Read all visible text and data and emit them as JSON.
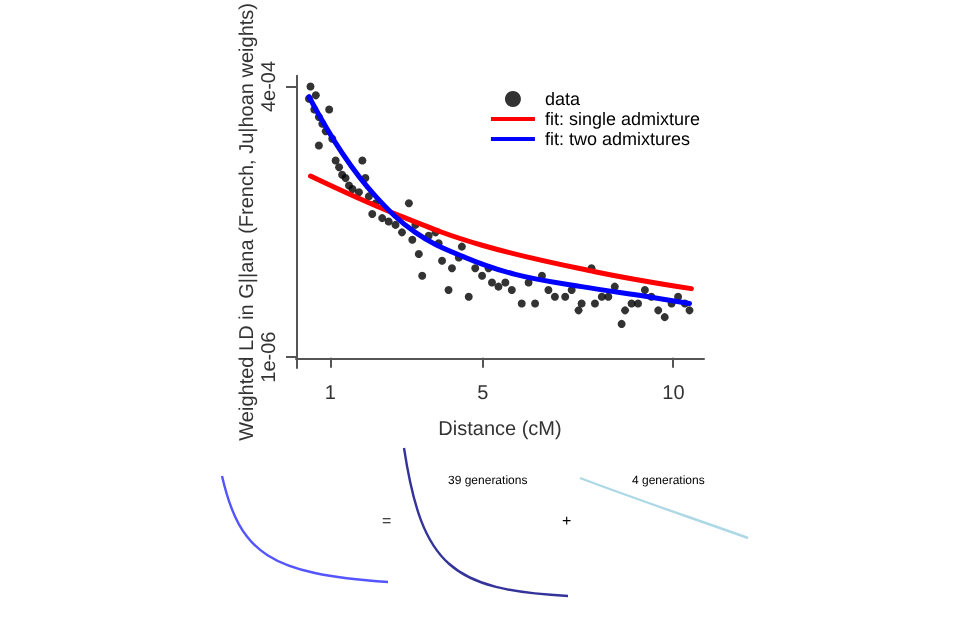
{
  "chart_data": {
    "type": "scatter",
    "ylabel": "Weighted LD in G||ana (French, Ju|hoan weights)",
    "xlabel": "Distance (cM)",
    "xlim": [
      0.1,
      10.8
    ],
    "xticks": [
      1,
      5,
      10
    ],
    "ylim": [
      -1.5e-05,
      0.000416
    ],
    "yticks": [
      {
        "value": 1e-06,
        "label": "1e-06"
      },
      {
        "value": 0.0004,
        "label": "4e-04"
      }
    ],
    "grid": false,
    "legend": "top right",
    "line_style": "solid",
    "annotations": [
      "=",
      "39 generations",
      "+",
      "4 generations"
    ],
    "series": [
      {
        "name": "data",
        "marker": "circle",
        "color": "#000000",
        "x": [
          0.48,
          0.44,
          0.62,
          0.7,
          0.58,
          0.79,
          0.88,
          0.7,
          0.97,
          1.05,
          1.14,
          1.23,
          1.31,
          1.4,
          1.49,
          1.58,
          1.84,
          1.92,
          1.75,
          2.01,
          2.1,
          2.19,
          2.36,
          2.53,
          2.71,
          2.88,
          3.06,
          3.15,
          3.23,
          3.32,
          3.41,
          3.58,
          3.76,
          3.84,
          3.93,
          4.1,
          4.19,
          4.37,
          4.45,
          4.63,
          4.8,
          4.98,
          5.15,
          5.24,
          5.41,
          5.59,
          5.76,
          6.02,
          6.2,
          6.37,
          6.55,
          6.72,
          6.89,
          7.16,
          7.33,
          7.51,
          7.59,
          7.85,
          7.94,
          8.12,
          8.29,
          8.46,
          8.64,
          8.73,
          8.9,
          9.07,
          9.25,
          9.42,
          9.6,
          9.77,
          9.95,
          10.12,
          10.3,
          10.42
        ],
        "values": [
          0.0004,
          0.000382,
          0.000387,
          0.000355,
          0.000366,
          0.000345,
          0.000334,
          0.000313,
          0.000366,
          0.000323,
          0.000291,
          0.000281,
          0.00027,
          0.000265,
          0.000254,
          0.000249,
          0.000291,
          0.000265,
          0.000244,
          0.000238,
          0.000212,
          0.000228,
          0.000206,
          0.000201,
          0.000196,
          0.000185,
          0.000228,
          0.000174,
          0.000196,
          0.000153,
          0.000121,
          0.00018,
          0.000185,
          0.000169,
          0.000143,
          0.0001,
          0.000132,
          0.000148,
          0.000164,
          9e-05,
          0.000132,
          0.000121,
          0.000132,
          0.000111,
          0.000105,
          0.000111,
          0.0001,
          8e-05,
          0.000111,
          8e-05,
          0.000121,
          0.0001,
          9e-05,
          9e-05,
          0.0001,
          7e-05,
          8e-05,
          0.000132,
          8e-05,
          9e-05,
          9e-05,
          0.000105,
          5e-05,
          7e-05,
          8e-05,
          8e-05,
          0.0001,
          9e-05,
          7e-05,
          6e-05,
          8e-05,
          9e-05,
          8e-05,
          7e-05
        ]
      },
      {
        "name": "fit: single admixture",
        "type": "line",
        "marker": "none",
        "color": "#ff0000",
        "x": [
          0.48,
          2.71,
          4.98,
          7.94,
          10.47
        ],
        "values": [
          0.000268,
          0.000212,
          0.000166,
          0.000127,
          0.000102
        ]
      },
      {
        "name": "fit: two admixtures",
        "type": "line",
        "marker": "none",
        "color": "#0000ff",
        "x": [
          0.44,
          1.31,
          2.19,
          3.23,
          4.45,
          5.85,
          7.59,
          9.34,
          10.42
        ],
        "values": [
          0.000385,
          0.000302,
          0.000238,
          0.000185,
          0.00015,
          0.000123,
          0.000105,
          9e-05,
          8e-05
        ]
      }
    ]
  }
}
